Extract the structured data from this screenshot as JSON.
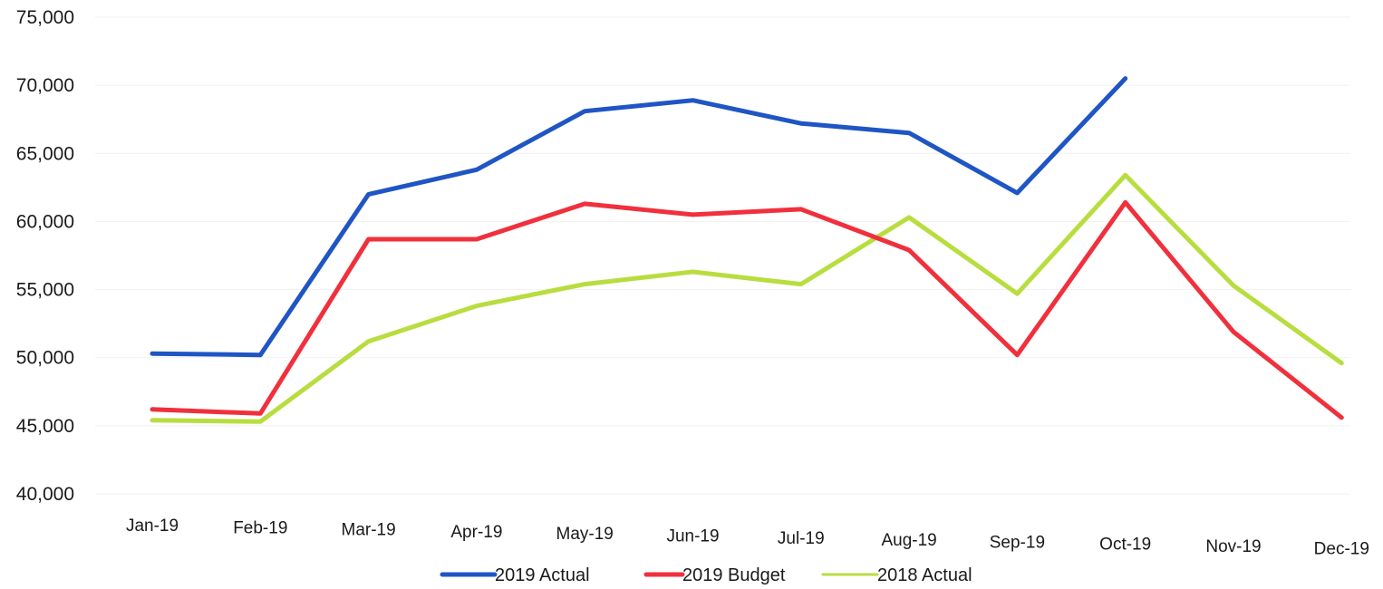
{
  "chart_data": {
    "type": "line",
    "title": "",
    "xlabel": "",
    "ylabel": "",
    "categories": [
      "Jan-19",
      "Feb-19",
      "Mar-19",
      "Apr-19",
      "May-19",
      "Jun-19",
      "Jul-19",
      "Aug-19",
      "Sep-19",
      "Oct-19",
      "Nov-19",
      "Dec-19"
    ],
    "ylim": [
      40000,
      75000
    ],
    "yticks": [
      40000,
      45000,
      50000,
      55000,
      60000,
      65000,
      70000,
      75000
    ],
    "ytick_labels": [
      "40,000",
      "45,000",
      "50,000",
      "55,000",
      "60,000",
      "65,000",
      "70,000",
      "75,000"
    ],
    "grid": true,
    "legend_position": "bottom-center",
    "series": [
      {
        "name": "2019 Actual",
        "color": "#1f55c4",
        "values": [
          50300,
          50200,
          62000,
          63800,
          68100,
          68900,
          67200,
          66500,
          62100,
          70500,
          null,
          null
        ]
      },
      {
        "name": "2019 Budget",
        "color": "#f0303c",
        "values": [
          46200,
          45900,
          58700,
          58700,
          61300,
          60500,
          60900,
          57900,
          50200,
          61400,
          51900,
          45600
        ]
      },
      {
        "name": "2018 Actual",
        "color": "#b8dd3f",
        "values": [
          45400,
          45300,
          51200,
          53800,
          55400,
          56300,
          55400,
          60300,
          54700,
          63400,
          55300,
          49600
        ]
      }
    ]
  }
}
